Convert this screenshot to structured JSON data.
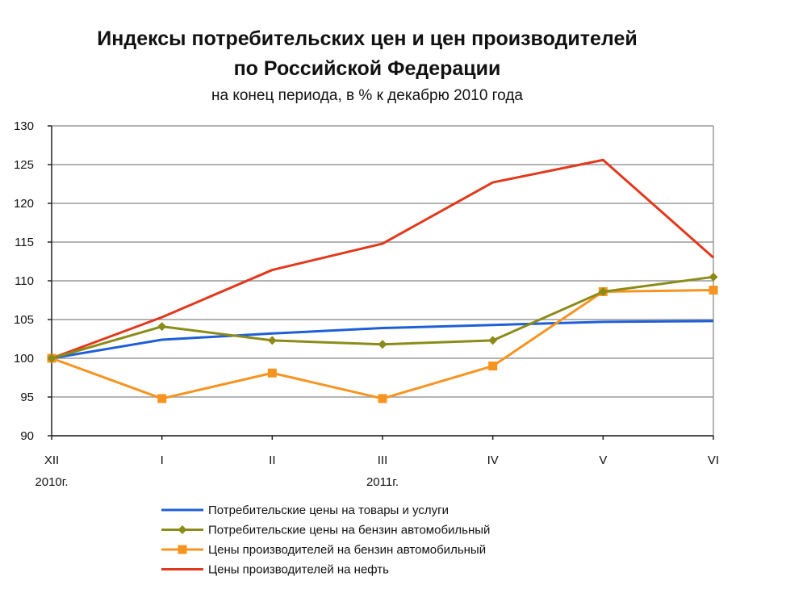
{
  "chart_data": {
    "type": "line",
    "title": "Индексы потребительских цен и цен производителей",
    "title_line2": "по Российской Федерации",
    "subtitle": "на конец периода, в % к декабрю 2010 года",
    "x": [
      "XII",
      "I",
      "II",
      "III",
      "IV",
      "V",
      "VI"
    ],
    "x_sublabels": [
      "2010г.",
      "",
      "",
      "2011г.",
      "",
      "",
      ""
    ],
    "ylim": [
      90,
      130
    ],
    "yticks": [
      90,
      95,
      100,
      105,
      110,
      115,
      120,
      125,
      130
    ],
    "grid": true,
    "legend_position": "bottom",
    "series": [
      {
        "name": "Потребительские цены на товары и услуги",
        "color": "#1f5fd6",
        "marker": "none",
        "values": [
          100,
          102.4,
          103.2,
          103.9,
          104.3,
          104.7,
          104.8
        ]
      },
      {
        "name": "Потребительские цены на бензин автомобильный",
        "color": "#8b8b1a",
        "marker": "diamond",
        "values": [
          100,
          104.1,
          102.3,
          101.8,
          102.3,
          108.6,
          110.5
        ]
      },
      {
        "name": "Цены производителей на бензин автомобильный",
        "color": "#f79420",
        "marker": "square",
        "values": [
          100,
          94.8,
          98.1,
          94.8,
          99.0,
          108.6,
          108.8
        ]
      },
      {
        "name": "Цены производителей на нефть",
        "color": "#e2381c",
        "marker": "none",
        "values": [
          100,
          105.3,
          111.4,
          114.8,
          122.7,
          125.6,
          113.0
        ]
      }
    ]
  }
}
